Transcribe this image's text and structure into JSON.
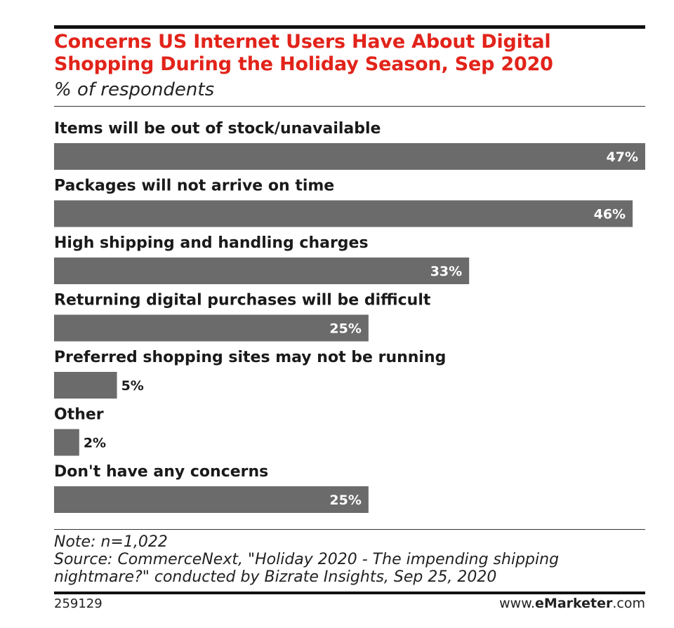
{
  "chart_data": {
    "type": "bar",
    "orientation": "horizontal",
    "title": "Concerns US Internet Users Have About Digital Shopping During the Holiday Season, Sep 2020",
    "subtitle": "% of respondents",
    "categories": [
      "Items will be out of stock/unavailable",
      "Packages will not arrive on time",
      "High shipping and handling charges",
      "Returning digital purchases will be difficult",
      "Preferred shopping sites may not be running",
      "Other",
      "Don't have any concerns"
    ],
    "values": [
      47,
      46,
      33,
      25,
      5,
      2,
      25
    ],
    "value_labels": [
      "47%",
      "46%",
      "33%",
      "25%",
      "5%",
      "2%",
      "25%"
    ],
    "xlim": [
      0,
      47
    ],
    "unit": "%",
    "grid": false,
    "legend": "none"
  },
  "notes": {
    "note": "Note: n=1,022",
    "source_line1": "Source: CommerceNext, \"Holiday 2020 - The impending shipping",
    "source_line2": "nightmare?\" conducted by Bizrate Insights, Sep 25, 2020"
  },
  "footer": {
    "chart_id": "259129",
    "brand_prefix": "www.",
    "brand_name": "eMarketer",
    "brand_suffix": ".com"
  },
  "colors": {
    "title": "#e2231a",
    "bar": "#6b6b6b",
    "label_inside": "#ffffff",
    "label_outside": "#1a1a1a"
  }
}
